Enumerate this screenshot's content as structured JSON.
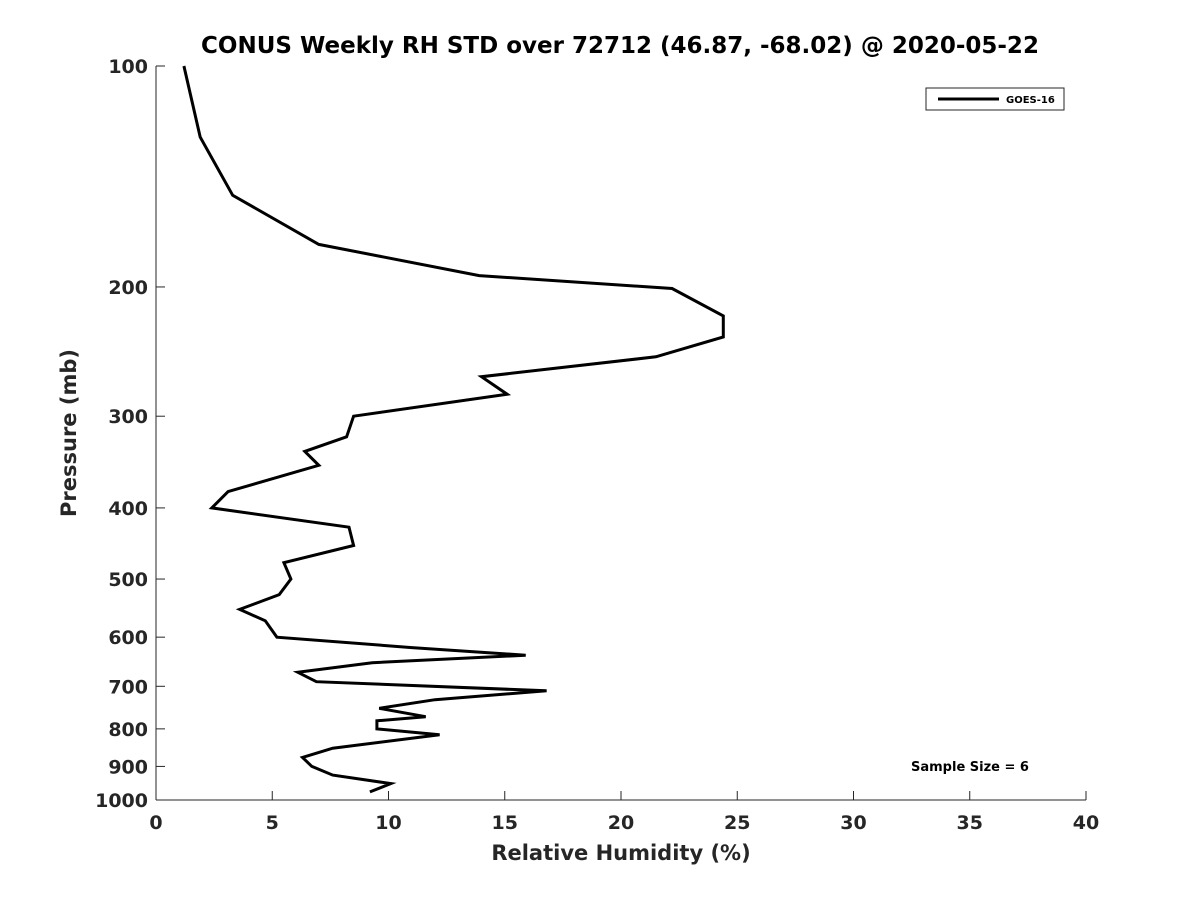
{
  "chart_data": {
    "type": "line",
    "title": "CONUS Weekly RH STD over 72712 (46.87, -68.02) @ 2020-05-22",
    "xlabel": "Relative Humidity (%)",
    "ylabel": "Pressure (mb)",
    "xlim": [
      0,
      40
    ],
    "ylim": [
      1000,
      100
    ],
    "yscale": "log",
    "x_ticks": [
      "0",
      "5",
      "10",
      "15",
      "20",
      "25",
      "30",
      "35",
      "40"
    ],
    "y_ticks": [
      "100",
      "200",
      "300",
      "400",
      "500",
      "600",
      "700",
      "800",
      "900",
      "1000"
    ],
    "grid": false,
    "legend_position": "top-right",
    "annotation": "Sample Size = 6",
    "series": [
      {
        "name": "GOES-16",
        "color": "#000000",
        "points": [
          [
            1.2,
            100
          ],
          [
            1.9,
            125
          ],
          [
            3.3,
            150
          ],
          [
            7.0,
            175
          ],
          [
            13.9,
            193
          ],
          [
            22.2,
            201
          ],
          [
            24.4,
            219
          ],
          [
            24.4,
            234
          ],
          [
            21.5,
            249
          ],
          [
            14.0,
            265
          ],
          [
            15.1,
            280
          ],
          [
            8.5,
            300
          ],
          [
            8.2,
            320
          ],
          [
            6.4,
            335
          ],
          [
            7.0,
            350
          ],
          [
            3.1,
            380
          ],
          [
            2.4,
            400
          ],
          [
            8.3,
            425
          ],
          [
            8.5,
            450
          ],
          [
            5.5,
            475
          ],
          [
            5.8,
            500
          ],
          [
            5.3,
            525
          ],
          [
            3.6,
            550
          ],
          [
            4.7,
            570
          ],
          [
            5.2,
            600
          ],
          [
            11.0,
            620
          ],
          [
            15.9,
            635
          ],
          [
            9.3,
            650
          ],
          [
            6.1,
            670
          ],
          [
            6.9,
            690
          ],
          [
            16.8,
            710
          ],
          [
            12.0,
            730
          ],
          [
            9.6,
            750
          ],
          [
            11.6,
            770
          ],
          [
            9.5,
            780
          ],
          [
            9.5,
            800
          ],
          [
            12.2,
            815
          ],
          [
            7.6,
            850
          ],
          [
            6.3,
            875
          ],
          [
            6.7,
            900
          ],
          [
            7.6,
            925
          ],
          [
            10.1,
            950
          ],
          [
            9.2,
            975
          ]
        ]
      }
    ]
  }
}
